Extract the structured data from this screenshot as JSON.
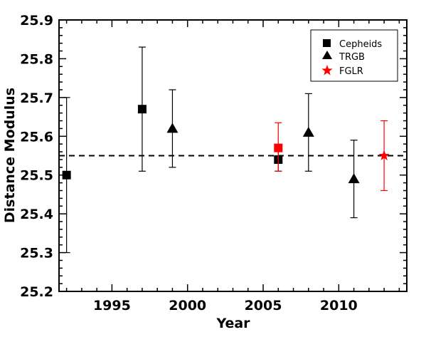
{
  "chart_data": {
    "type": "scatter",
    "xlabel": "Year",
    "ylabel": "Distance Modulus",
    "xlim": [
      1991.5,
      2014.5
    ],
    "ylim": [
      25.2,
      25.9
    ],
    "xticks": [
      "1995",
      "2000",
      "2005",
      "2010"
    ],
    "yticks": [
      "25.2",
      "25.3",
      "25.4",
      "25.5",
      "25.6",
      "25.7",
      "25.8",
      "25.9"
    ],
    "reference_line": {
      "y": 25.55,
      "style": "dashed"
    },
    "legend": {
      "position": "top-right",
      "entries": [
        "Cepheids",
        "TRGB",
        "FGLR"
      ]
    },
    "series": [
      {
        "name": "Cepheids",
        "marker": "square",
        "points": [
          {
            "x": 1992,
            "y": 25.5,
            "ylow": 25.3,
            "yhigh": 25.7,
            "color": "#000000"
          },
          {
            "x": 1997,
            "y": 25.67,
            "ylow": 25.51,
            "yhigh": 25.83,
            "color": "#000000"
          },
          {
            "x": 2006,
            "y": 25.54,
            "ylow": 25.51,
            "yhigh": 25.57,
            "color": "#000000"
          },
          {
            "x": 2006,
            "y": 25.57,
            "ylow": 25.51,
            "yhigh": 25.635,
            "color": "#ff0000"
          }
        ]
      },
      {
        "name": "TRGB",
        "marker": "triangle",
        "points": [
          {
            "x": 1999,
            "y": 25.62,
            "ylow": 25.52,
            "yhigh": 25.72,
            "color": "#000000"
          },
          {
            "x": 2008,
            "y": 25.61,
            "ylow": 25.51,
            "yhigh": 25.71,
            "color": "#000000"
          },
          {
            "x": 2011,
            "y": 25.49,
            "ylow": 25.39,
            "yhigh": 25.59,
            "color": "#000000"
          }
        ]
      },
      {
        "name": "FGLR",
        "marker": "star",
        "points": [
          {
            "x": 2013,
            "y": 25.55,
            "ylow": 25.46,
            "yhigh": 25.64,
            "color": "#ff0000"
          }
        ]
      }
    ]
  }
}
